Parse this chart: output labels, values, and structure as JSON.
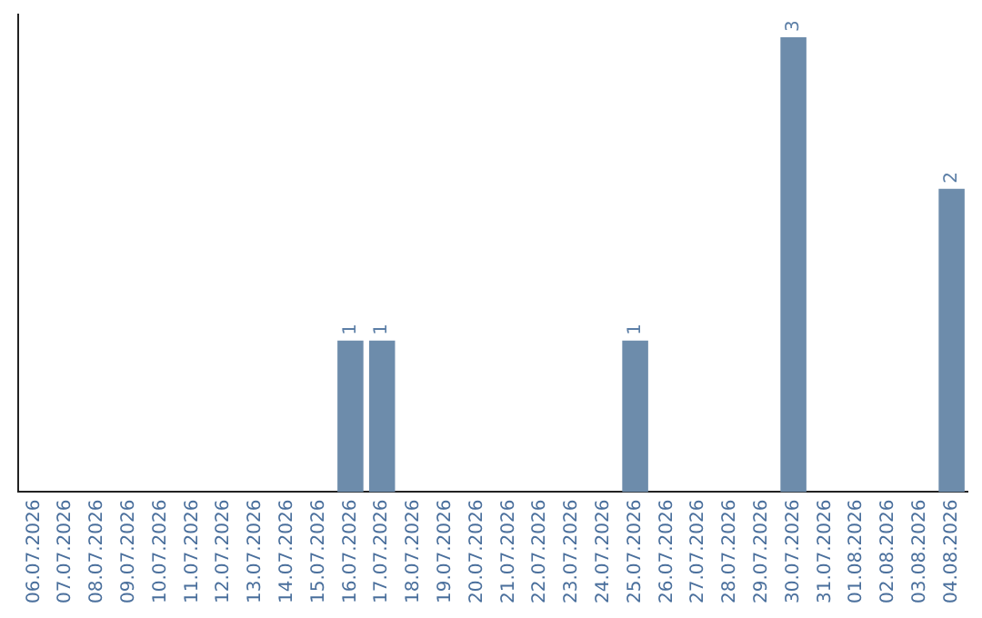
{
  "chart_data": {
    "type": "bar",
    "categories": [
      "06.07.2026",
      "07.07.2026",
      "08.07.2026",
      "09.07.2026",
      "10.07.2026",
      "11.07.2026",
      "12.07.2026",
      "13.07.2026",
      "14.07.2026",
      "15.07.2026",
      "16.07.2026",
      "17.07.2026",
      "18.07.2026",
      "19.07.2026",
      "20.07.2026",
      "21.07.2026",
      "22.07.2026",
      "23.07.2026",
      "24.07.2026",
      "25.07.2026",
      "26.07.2026",
      "27.07.2026",
      "28.07.2026",
      "29.07.2026",
      "30.07.2026",
      "31.07.2026",
      "01.08.2026",
      "02.08.2026",
      "03.08.2026",
      "04.08.2026"
    ],
    "values": [
      0,
      0,
      0,
      0,
      0,
      0,
      0,
      0,
      0,
      0,
      1,
      1,
      0,
      0,
      0,
      0,
      0,
      0,
      0,
      1,
      0,
      0,
      0,
      0,
      3,
      0,
      0,
      0,
      0,
      2
    ],
    "value_labels": [
      null,
      null,
      null,
      null,
      null,
      null,
      null,
      null,
      null,
      null,
      "1",
      "1",
      null,
      null,
      null,
      null,
      null,
      null,
      null,
      "1",
      null,
      null,
      null,
      null,
      "3",
      null,
      null,
      null,
      null,
      "2"
    ],
    "color": "#6d8cab",
    "ylim": [
      0,
      3.15
    ],
    "tick_labels": "x",
    "grid": false,
    "legend": false
  }
}
